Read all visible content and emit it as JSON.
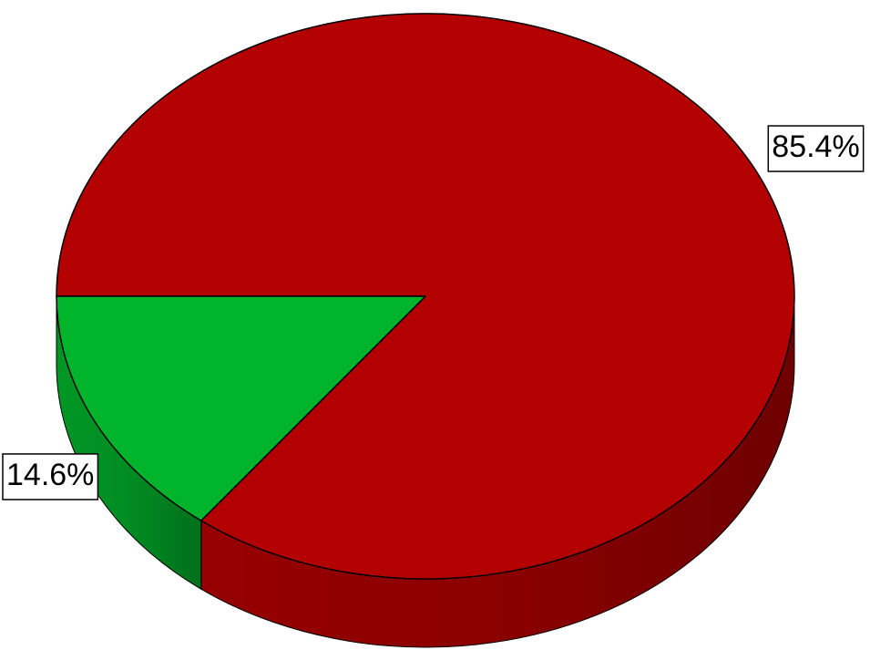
{
  "chart_data": {
    "type": "pie",
    "values": [
      85.4,
      14.6
    ],
    "value_labels": [
      "85.4%",
      "14.6%"
    ],
    "colors": [
      "#b30000",
      "#00b52c"
    ]
  }
}
